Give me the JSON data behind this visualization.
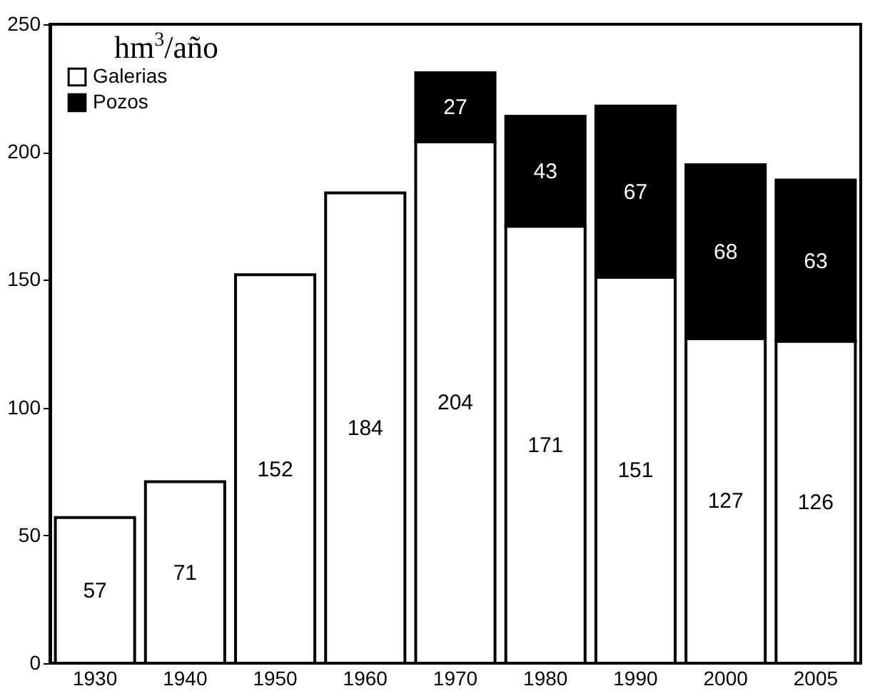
{
  "chart_data": {
    "type": "bar",
    "ylabel": "hm$^{3}$/año",
    "categories": [
      "1930",
      "1940",
      "1950",
      "1960",
      "1970",
      "1980",
      "1990",
      "2000",
      "2005"
    ],
    "series": [
      {
        "name": "Galerias",
        "color": "#ffffff",
        "values": [
          57,
          71,
          152,
          184,
          204,
          171,
          151,
          127,
          126
        ]
      },
      {
        "name": "Pozos",
        "color": "#000000",
        "values": [
          null,
          null,
          null,
          null,
          27,
          43,
          67,
          68,
          63
        ]
      }
    ],
    "stacked": true,
    "data_labels": true,
    "ylim": [
      0,
      250
    ],
    "yticks": [
      0,
      50,
      100,
      150,
      200,
      250
    ],
    "grid": false,
    "legend": "top left"
  }
}
